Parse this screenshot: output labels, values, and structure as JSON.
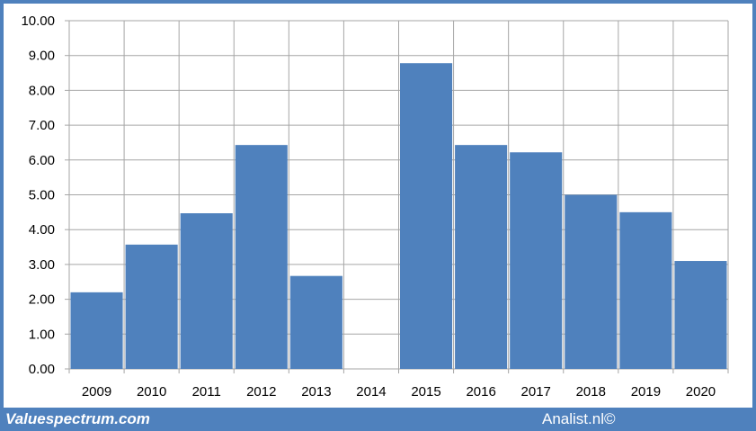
{
  "chart_data": {
    "type": "bar",
    "categories": [
      "2009",
      "2010",
      "2011",
      "2012",
      "2013",
      "2014",
      "2015",
      "2016",
      "2017",
      "2018",
      "2019",
      "2020"
    ],
    "values": [
      2.2,
      3.57,
      4.47,
      6.43,
      2.67,
      null,
      8.78,
      6.43,
      6.22,
      5.0,
      4.5,
      3.1
    ],
    "ylim": [
      0,
      10
    ],
    "yticks": [
      "0.00",
      "1.00",
      "2.00",
      "3.00",
      "4.00",
      "5.00",
      "6.00",
      "7.00",
      "8.00",
      "9.00",
      "10.00"
    ],
    "grid": true,
    "bar_color": "#4f81bd"
  },
  "footer": {
    "left": "Valuespectrum.com",
    "right": "Analist.nl©"
  },
  "colors": {
    "frame": "#4f81bd",
    "gridline": "#a6a6a6"
  }
}
